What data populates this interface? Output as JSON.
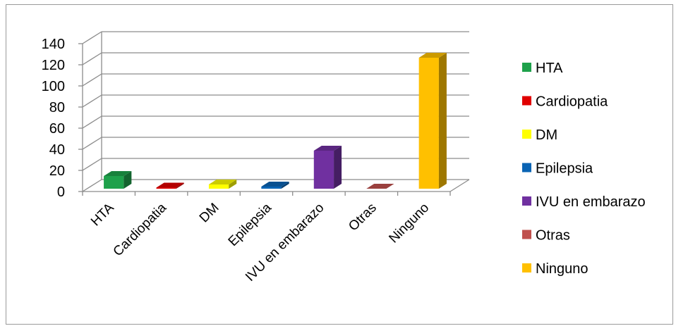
{
  "chart_data": {
    "type": "bar",
    "style": "3d-column",
    "categories": [
      "HTA",
      "Cardiopatia",
      "DM",
      "Epilepsia",
      "IVU en embarazo",
      "Otras",
      "Ninguno"
    ],
    "values": [
      12,
      1,
      4,
      2,
      36,
      0,
      124
    ],
    "colors": [
      "#1ea14b",
      "#e00000",
      "#ffff00",
      "#0a64b4",
      "#7030a0",
      "#c0504d",
      "#ffc000"
    ],
    "ylim": [
      0,
      140
    ],
    "yticks": [
      "0",
      "20",
      "40",
      "60",
      "80",
      "100",
      "120",
      "140"
    ],
    "grid": true,
    "legend_position": "right",
    "legend": [
      "HTA",
      "Cardiopatia",
      "DM",
      "Epilepsia",
      "IVU en embarazo",
      "Otras",
      "Ninguno"
    ]
  }
}
